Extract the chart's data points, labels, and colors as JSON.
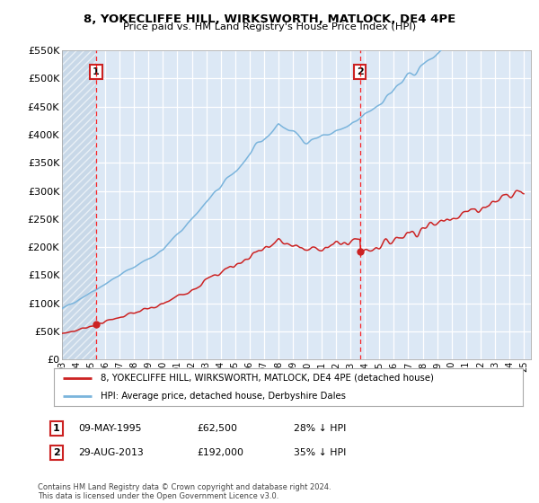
{
  "title_line1": "8, YOKECLIFFE HILL, WIRKSWORTH, MATLOCK, DE4 4PE",
  "title_line2": "Price paid vs. HM Land Registry's House Price Index (HPI)",
  "ylim": [
    0,
    550000
  ],
  "yticks": [
    0,
    50000,
    100000,
    150000,
    200000,
    250000,
    300000,
    350000,
    400000,
    450000,
    500000,
    550000
  ],
  "ytick_labels": [
    "£0",
    "£50K",
    "£100K",
    "£150K",
    "£200K",
    "£250K",
    "£300K",
    "£350K",
    "£400K",
    "£450K",
    "£500K",
    "£550K"
  ],
  "hpi_color": "#7ab4dc",
  "price_color": "#cc2222",
  "purchase1_date": 1995.36,
  "purchase1_price": 62500,
  "purchase2_date": 2013.66,
  "purchase2_price": 192000,
  "legend_property": "8, YOKECLIFFE HILL, WIRKSWORTH, MATLOCK, DE4 4PE (detached house)",
  "legend_hpi": "HPI: Average price, detached house, Derbyshire Dales",
  "info1": [
    "1",
    "09-MAY-1995",
    "£62,500",
    "28% ↓ HPI"
  ],
  "info2": [
    "2",
    "29-AUG-2013",
    "£192,000",
    "35% ↓ HPI"
  ],
  "copyright": "Contains HM Land Registry data © Crown copyright and database right 2024.\nThis data is licensed under the Open Government Licence v3.0.",
  "bg_color": "#dce8f5",
  "hatch_bg": "#c8d8e8",
  "xlim_start": 1993.0,
  "xlim_end": 2025.5
}
